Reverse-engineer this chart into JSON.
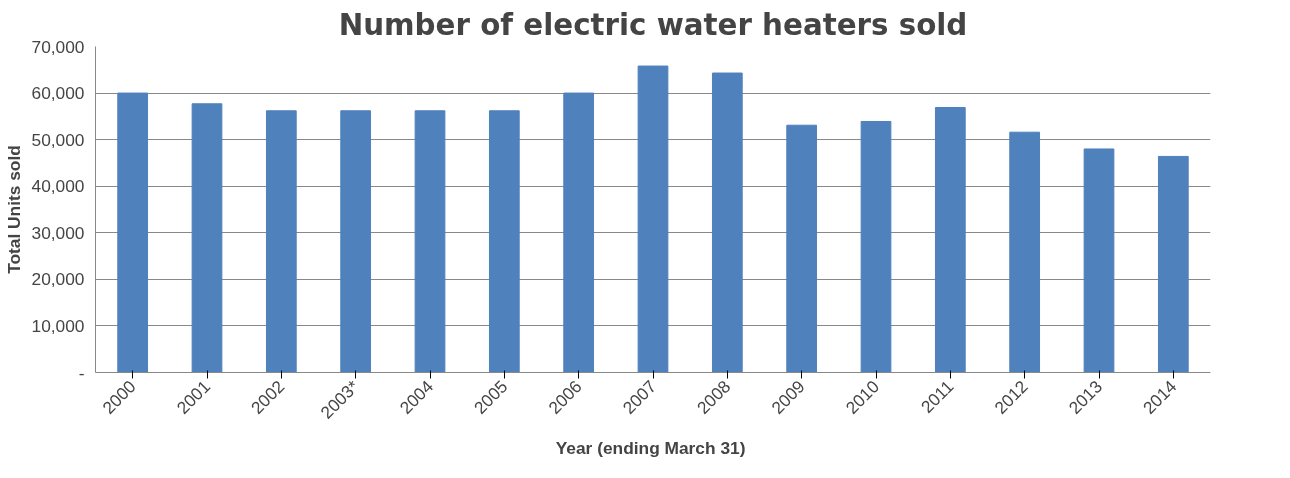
{
  "chart_data": {
    "type": "bar",
    "title": "Number of electric water heaters sold",
    "xlabel": "Year (ending March  31)",
    "ylabel": "Total Units sold",
    "categories": [
      "2000",
      "2001",
      "2002",
      "2003*",
      "2004",
      "2005",
      "2006",
      "2007",
      "2008",
      "2009",
      "2010",
      "2011",
      "2012",
      "2013",
      "2014"
    ],
    "values": [
      60000,
      57700,
      56200,
      56200,
      56200,
      56200,
      60000,
      65800,
      64300,
      53100,
      53900,
      56900,
      51600,
      48000,
      46400
    ],
    "color": "#4f81bd",
    "ylim": [
      0,
      70000
    ],
    "yticks": [
      {
        "value": 0,
        "label": "-"
      },
      {
        "value": 10000,
        "label": "10,000"
      },
      {
        "value": 20000,
        "label": "20,000"
      },
      {
        "value": 30000,
        "label": "30,000"
      },
      {
        "value": 40000,
        "label": "40,000"
      },
      {
        "value": 50000,
        "label": "50,000"
      },
      {
        "value": 60000,
        "label": "60,000"
      },
      {
        "value": 70000,
        "label": "70,000"
      }
    ],
    "grid": "y"
  }
}
